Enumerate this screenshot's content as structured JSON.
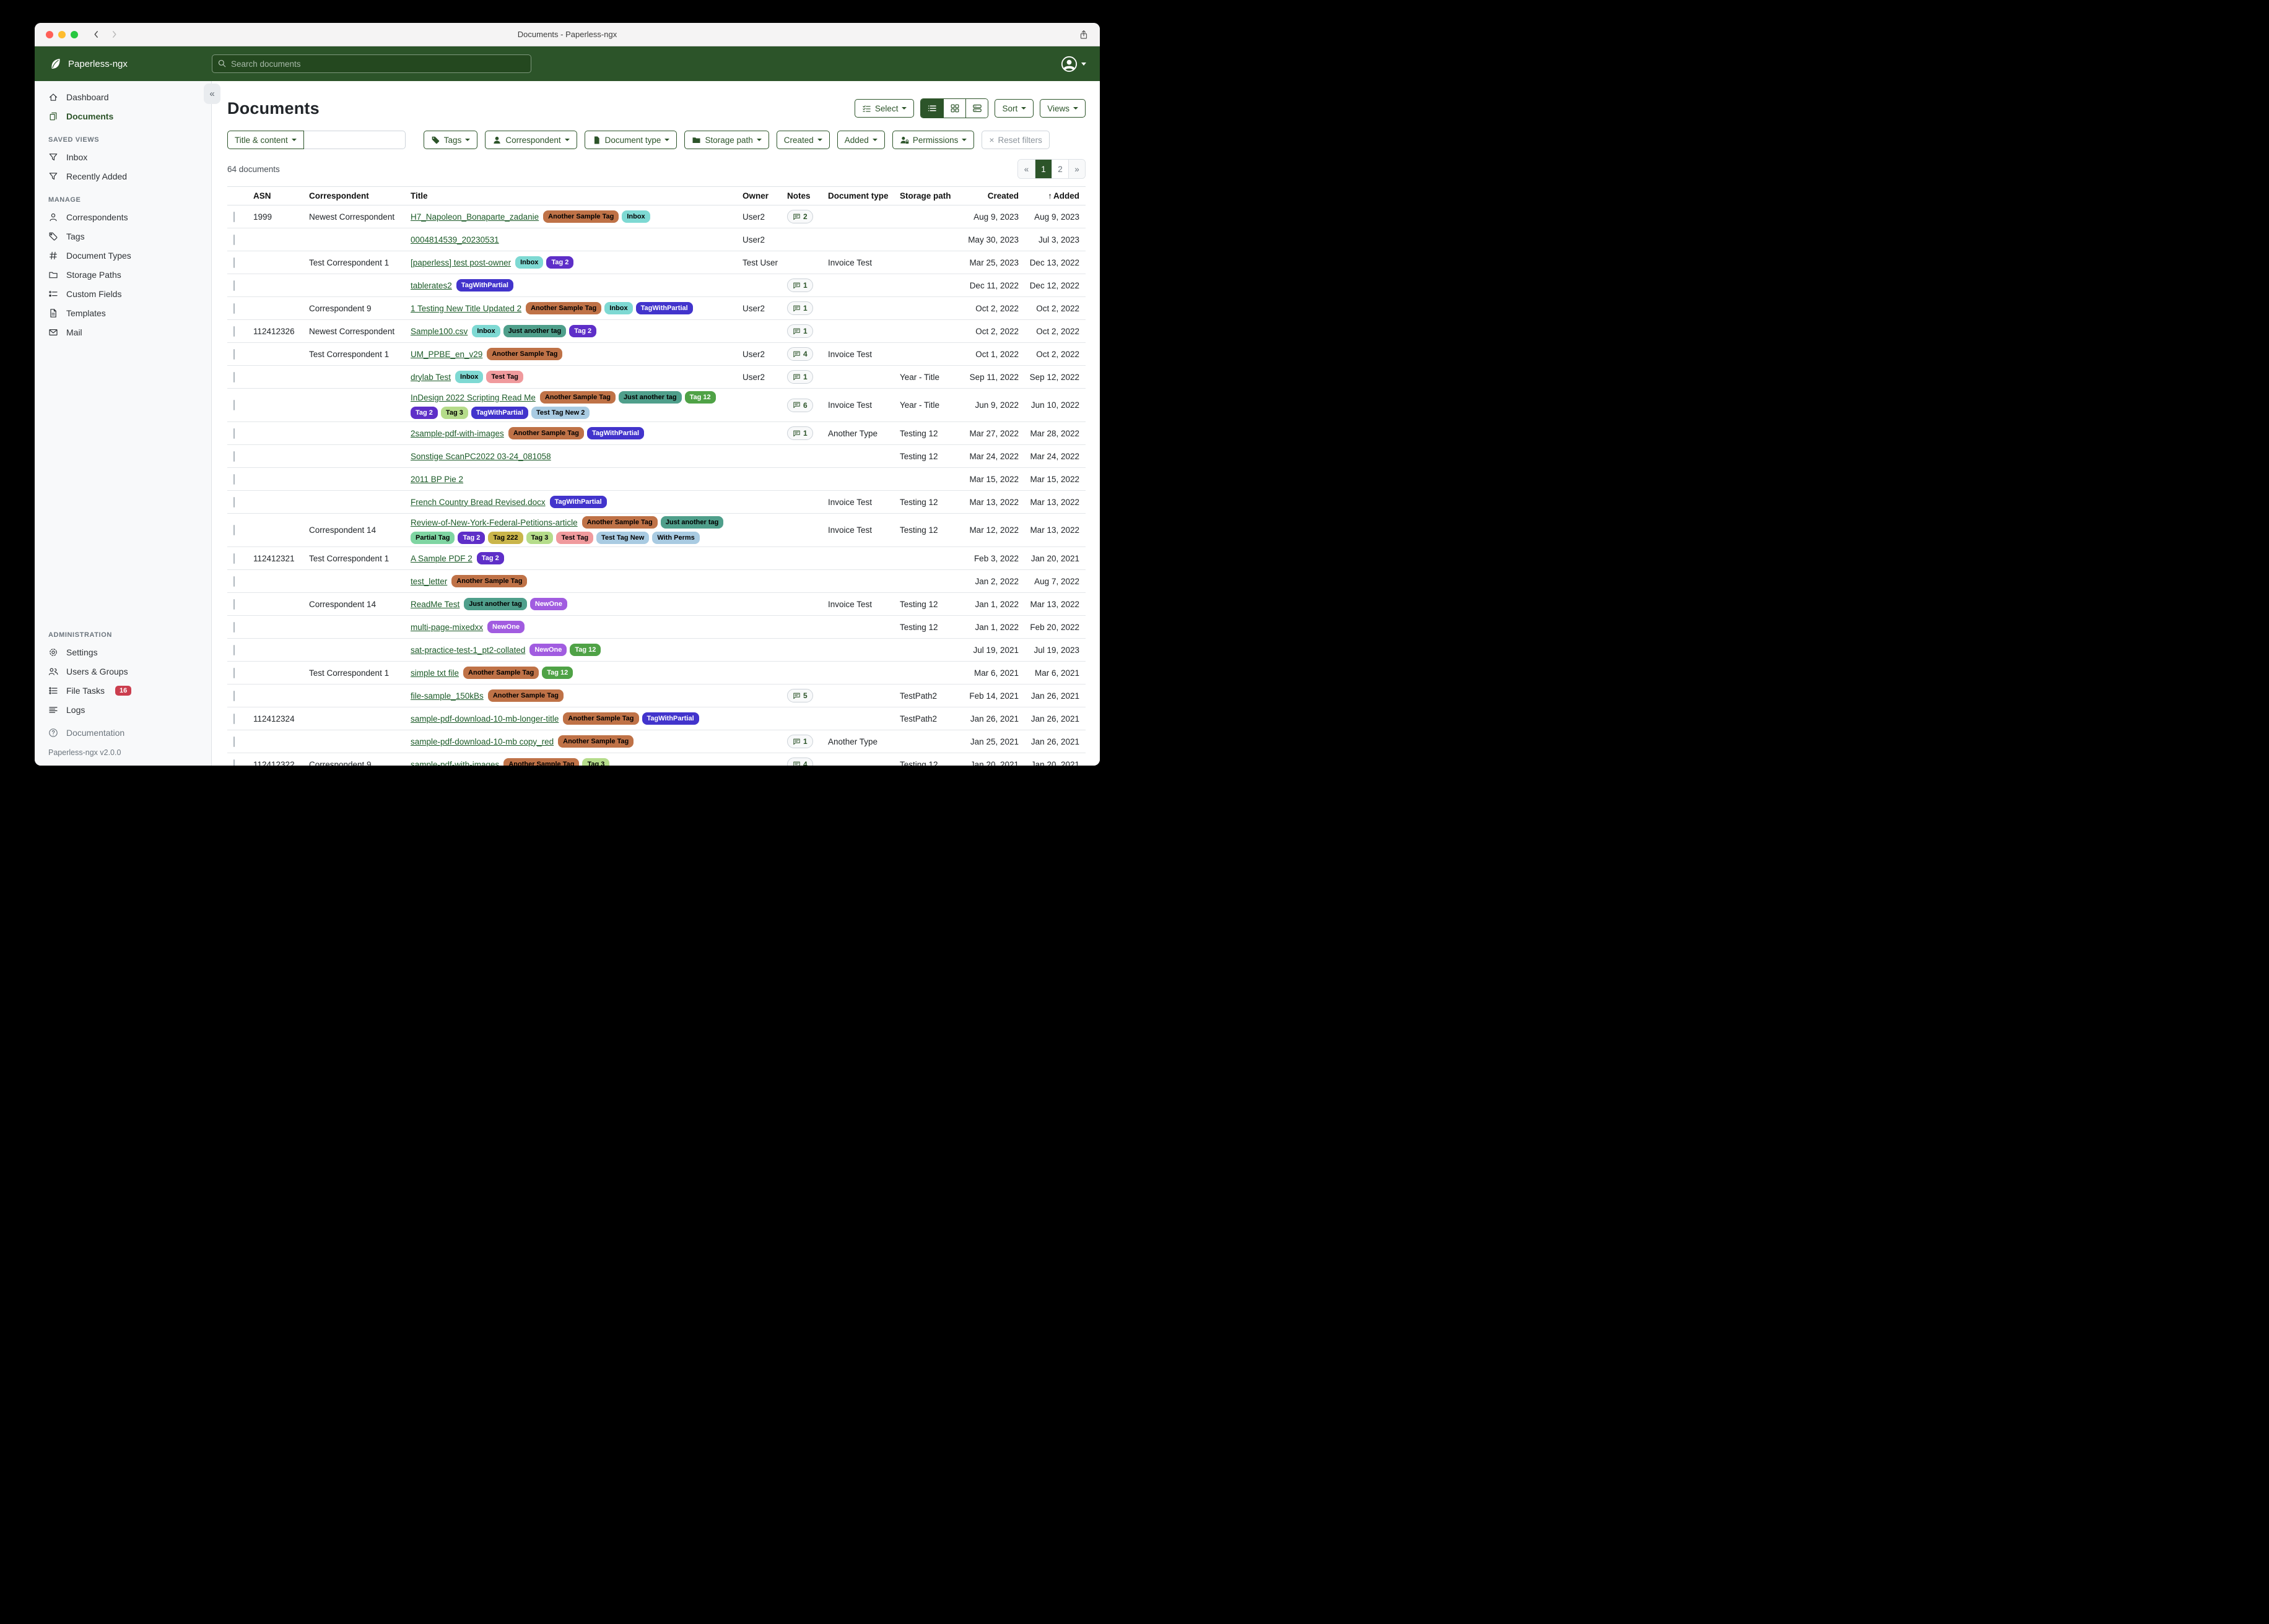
{
  "window": {
    "title": "Documents - Paperless-ngx"
  },
  "navbar": {
    "brand": "Paperless-ngx",
    "search_placeholder": "Search documents"
  },
  "sidebar": {
    "items": [
      {
        "label": "Dashboard",
        "icon": "home"
      },
      {
        "label": "Documents",
        "icon": "docs",
        "active": true
      }
    ],
    "sections": [
      {
        "heading": "SAVED VIEWS",
        "items": [
          {
            "label": "Inbox",
            "icon": "funnel"
          },
          {
            "label": "Recently Added",
            "icon": "funnel"
          }
        ]
      },
      {
        "heading": "MANAGE",
        "items": [
          {
            "label": "Correspondents",
            "icon": "person"
          },
          {
            "label": "Tags",
            "icon": "tag"
          },
          {
            "label": "Document Types",
            "icon": "hash"
          },
          {
            "label": "Storage Paths",
            "icon": "folder"
          },
          {
            "label": "Custom Fields",
            "icon": "fields"
          },
          {
            "label": "Templates",
            "icon": "template"
          },
          {
            "label": "Mail",
            "icon": "mail"
          }
        ]
      },
      {
        "heading": "ADMINISTRATION",
        "push": true,
        "items": [
          {
            "label": "Settings",
            "icon": "gear"
          },
          {
            "label": "Users & Groups",
            "icon": "users"
          },
          {
            "label": "File Tasks",
            "icon": "tasks",
            "badge": "16"
          },
          {
            "label": "Logs",
            "icon": "logs"
          }
        ]
      }
    ],
    "footer": {
      "documentation": "Documentation",
      "version": "Paperless-ngx v2.0.0"
    }
  },
  "page": {
    "title": "Documents",
    "select_label": "Select",
    "sort_label": "Sort",
    "views_label": "Views",
    "count": "64 documents"
  },
  "filters": {
    "title_dropdown": "Title & content",
    "search_value": "",
    "buttons": [
      {
        "label": "Tags",
        "icon": "tagfill"
      },
      {
        "label": "Correspondent",
        "icon": "personfill"
      },
      {
        "label": "Document type",
        "icon": "filefill"
      },
      {
        "label": "Storage path",
        "icon": "folderfill"
      },
      {
        "label": "Created"
      },
      {
        "label": "Added"
      },
      {
        "label": "Permissions",
        "icon": "personlock"
      }
    ],
    "reset": "Reset filters"
  },
  "pagination": {
    "prev": "«",
    "next": "»",
    "pages": [
      {
        "label": "1",
        "active": true
      },
      {
        "label": "2"
      }
    ]
  },
  "table": {
    "headers": {
      "asn": "ASN",
      "correspondent": "Correspondent",
      "title": "Title",
      "owner": "Owner",
      "notes": "Notes",
      "doctype": "Document type",
      "storage": "Storage path",
      "created": "Created",
      "added": "Added",
      "added_sort_arrow": "↑"
    },
    "tag_palette": {
      "Another Sample Tag": {
        "bg": "#bf7247",
        "fg": "#000000"
      },
      "Inbox": {
        "bg": "#7ed9d3",
        "fg": "#000000"
      },
      "Tag 2": {
        "bg": "#5e2fc8",
        "fg": "#ffffff"
      },
      "TagWithPartial": {
        "bg": "#4234cc",
        "fg": "#ffffff"
      },
      "Just another tag": {
        "bg": "#4f9f8b",
        "fg": "#000000"
      },
      "Tag 12": {
        "bg": "#4fa246",
        "fg": "#ffffff"
      },
      "Tag 3": {
        "bg": "#b5dc8a",
        "fg": "#000000"
      },
      "Test Tag New 2": {
        "bg": "#a9cbe2",
        "fg": "#000000"
      },
      "Test Tag": {
        "bg": "#f09a9d",
        "fg": "#000000"
      },
      "Partial Tag": {
        "bg": "#7fd5a2",
        "fg": "#000000"
      },
      "Tag 222": {
        "bg": "#c9b54a",
        "fg": "#000000"
      },
      "Test Tag New": {
        "bg": "#a9cbe2",
        "fg": "#000000"
      },
      "With Perms": {
        "bg": "#a9cbe2",
        "fg": "#000000"
      },
      "NewOne": {
        "bg": "#a15ce0",
        "fg": "#ffffff"
      }
    },
    "rows": [
      {
        "asn": "1999",
        "correspondent": "Newest Correspondent",
        "title": "H7_Napoleon_Bonaparte_zadanie",
        "tags": [
          "Another Sample Tag",
          "Inbox"
        ],
        "owner": "User2",
        "notes": "2",
        "doctype": "",
        "storage": "",
        "created": "Aug 9, 2023",
        "added": "Aug 9, 2023"
      },
      {
        "asn": "",
        "correspondent": "",
        "title": "0004814539_20230531",
        "tags": [],
        "owner": "User2",
        "notes": "",
        "doctype": "",
        "storage": "",
        "created": "May 30, 2023",
        "added": "Jul 3, 2023"
      },
      {
        "asn": "",
        "correspondent": "Test Correspondent 1",
        "title": "[paperless] test post-owner",
        "tags": [
          "Inbox",
          "Tag 2"
        ],
        "owner": "Test User",
        "notes": "",
        "doctype": "Invoice Test",
        "storage": "",
        "created": "Mar 25, 2023",
        "added": "Dec 13, 2022"
      },
      {
        "asn": "",
        "correspondent": "",
        "title": "tablerates2",
        "tags": [
          "TagWithPartial"
        ],
        "owner": "",
        "notes": "1",
        "doctype": "",
        "storage": "",
        "created": "Dec 11, 2022",
        "added": "Dec 12, 2022"
      },
      {
        "asn": "",
        "correspondent": "Correspondent 9",
        "title": "1 Testing New Title Updated 2",
        "tags": [
          "Another Sample Tag",
          "Inbox",
          "TagWithPartial"
        ],
        "owner": "User2",
        "notes": "1",
        "doctype": "",
        "storage": "",
        "created": "Oct 2, 2022",
        "added": "Oct 2, 2022"
      },
      {
        "asn": "112412326",
        "correspondent": "Newest Correspondent",
        "title": "Sample100.csv",
        "tags": [
          "Inbox",
          "Just another tag",
          "Tag 2"
        ],
        "owner": "",
        "notes": "1",
        "doctype": "",
        "storage": "",
        "created": "Oct 2, 2022",
        "added": "Oct 2, 2022"
      },
      {
        "asn": "",
        "correspondent": "Test Correspondent 1",
        "title": "UM_PPBE_en_v29",
        "tags": [
          "Another Sample Tag"
        ],
        "owner": "User2",
        "notes": "4",
        "doctype": "Invoice Test",
        "storage": "",
        "created": "Oct 1, 2022",
        "added": "Oct 2, 2022"
      },
      {
        "asn": "",
        "correspondent": "",
        "title": "drylab Test",
        "tags": [
          "Inbox",
          "Test Tag"
        ],
        "owner": "User2",
        "notes": "1",
        "doctype": "",
        "storage": "Year - Title",
        "created": "Sep 11, 2022",
        "added": "Sep 12, 2022"
      },
      {
        "asn": "",
        "correspondent": "",
        "title": "InDesign 2022 Scripting Read Me",
        "tags": [
          "Another Sample Tag",
          "Just another tag",
          "Tag 12",
          "Tag 2",
          "Tag 3",
          "TagWithPartial",
          "Test Tag New 2"
        ],
        "owner": "",
        "notes": "6",
        "doctype": "Invoice Test",
        "storage": "Year - Title",
        "created": "Jun 9, 2022",
        "added": "Jun 10, 2022"
      },
      {
        "asn": "",
        "correspondent": "",
        "title": "2sample-pdf-with-images",
        "tags": [
          "Another Sample Tag",
          "TagWithPartial"
        ],
        "owner": "",
        "notes": "1",
        "doctype": "Another Type",
        "storage": "Testing 12",
        "created": "Mar 27, 2022",
        "added": "Mar 28, 2022"
      },
      {
        "asn": "",
        "correspondent": "",
        "title": "Sonstige ScanPC2022 03-24_081058",
        "tags": [],
        "owner": "",
        "notes": "",
        "doctype": "",
        "storage": "Testing 12",
        "created": "Mar 24, 2022",
        "added": "Mar 24, 2022"
      },
      {
        "asn": "",
        "correspondent": "",
        "title": "2011 BP Pie 2",
        "tags": [],
        "owner": "",
        "notes": "",
        "doctype": "",
        "storage": "",
        "created": "Mar 15, 2022",
        "added": "Mar 15, 2022"
      },
      {
        "asn": "",
        "correspondent": "",
        "title": "French Country Bread Revised.docx",
        "tags": [
          "TagWithPartial"
        ],
        "owner": "",
        "notes": "",
        "doctype": "Invoice Test",
        "storage": "Testing 12",
        "created": "Mar 13, 2022",
        "added": "Mar 13, 2022"
      },
      {
        "asn": "",
        "correspondent": "Correspondent 14",
        "title": "Review-of-New-York-Federal-Petitions-article",
        "tags": [
          "Another Sample Tag",
          "Just another tag",
          "Partial Tag",
          "Tag 2",
          "Tag 222",
          "Tag 3",
          "Test Tag",
          "Test Tag New",
          "With Perms"
        ],
        "owner": "",
        "notes": "",
        "doctype": "Invoice Test",
        "storage": "Testing 12",
        "created": "Mar 12, 2022",
        "added": "Mar 13, 2022"
      },
      {
        "asn": "112412321",
        "correspondent": "Test Correspondent 1",
        "title": "A Sample PDF 2",
        "tags": [
          "Tag 2"
        ],
        "owner": "",
        "notes": "",
        "doctype": "",
        "storage": "",
        "created": "Feb 3, 2022",
        "added": "Jan 20, 2021"
      },
      {
        "asn": "",
        "correspondent": "",
        "title": "test_letter",
        "tags": [
          "Another Sample Tag"
        ],
        "owner": "",
        "notes": "",
        "doctype": "",
        "storage": "",
        "created": "Jan 2, 2022",
        "added": "Aug 7, 2022"
      },
      {
        "asn": "",
        "correspondent": "Correspondent 14",
        "title": "ReadMe Test",
        "tags": [
          "Just another tag",
          "NewOne"
        ],
        "owner": "",
        "notes": "",
        "doctype": "Invoice Test",
        "storage": "Testing 12",
        "created": "Jan 1, 2022",
        "added": "Mar 13, 2022"
      },
      {
        "asn": "",
        "correspondent": "",
        "title": "multi-page-mixedxx",
        "tags": [
          "NewOne"
        ],
        "owner": "",
        "notes": "",
        "doctype": "",
        "storage": "Testing 12",
        "created": "Jan 1, 2022",
        "added": "Feb 20, 2022"
      },
      {
        "asn": "",
        "correspondent": "",
        "title": "sat-practice-test-1_pt2-collated",
        "tags": [
          "NewOne",
          "Tag 12"
        ],
        "owner": "",
        "notes": "",
        "doctype": "",
        "storage": "",
        "created": "Jul 19, 2021",
        "added": "Jul 19, 2023"
      },
      {
        "asn": "",
        "correspondent": "Test Correspondent 1",
        "title": "simple txt file",
        "tags": [
          "Another Sample Tag",
          "Tag 12"
        ],
        "owner": "",
        "notes": "",
        "doctype": "",
        "storage": "",
        "created": "Mar 6, 2021",
        "added": "Mar 6, 2021"
      },
      {
        "asn": "",
        "correspondent": "",
        "title": "file-sample_150kBs",
        "tags": [
          "Another Sample Tag"
        ],
        "owner": "",
        "notes": "5",
        "doctype": "",
        "storage": "TestPath2",
        "created": "Feb 14, 2021",
        "added": "Jan 26, 2021"
      },
      {
        "asn": "112412324",
        "correspondent": "",
        "title": "sample-pdf-download-10-mb-longer-title",
        "tags": [
          "Another Sample Tag",
          "TagWithPartial"
        ],
        "owner": "",
        "notes": "",
        "doctype": "",
        "storage": "TestPath2",
        "created": "Jan 26, 2021",
        "added": "Jan 26, 2021"
      },
      {
        "asn": "",
        "correspondent": "",
        "title": "sample-pdf-download-10-mb copy_red",
        "tags": [
          "Another Sample Tag"
        ],
        "owner": "",
        "notes": "1",
        "doctype": "Another Type",
        "storage": "",
        "created": "Jan 25, 2021",
        "added": "Jan 26, 2021"
      },
      {
        "asn": "112412322",
        "correspondent": "Correspondent 9",
        "title": "sample-pdf-with-images",
        "tags": [
          "Another Sample Tag",
          "Tag 3"
        ],
        "owner": "",
        "notes": "4",
        "doctype": "",
        "storage": "Testing 12",
        "created": "Jan 20, 2021",
        "added": "Jan 20, 2021"
      }
    ]
  }
}
